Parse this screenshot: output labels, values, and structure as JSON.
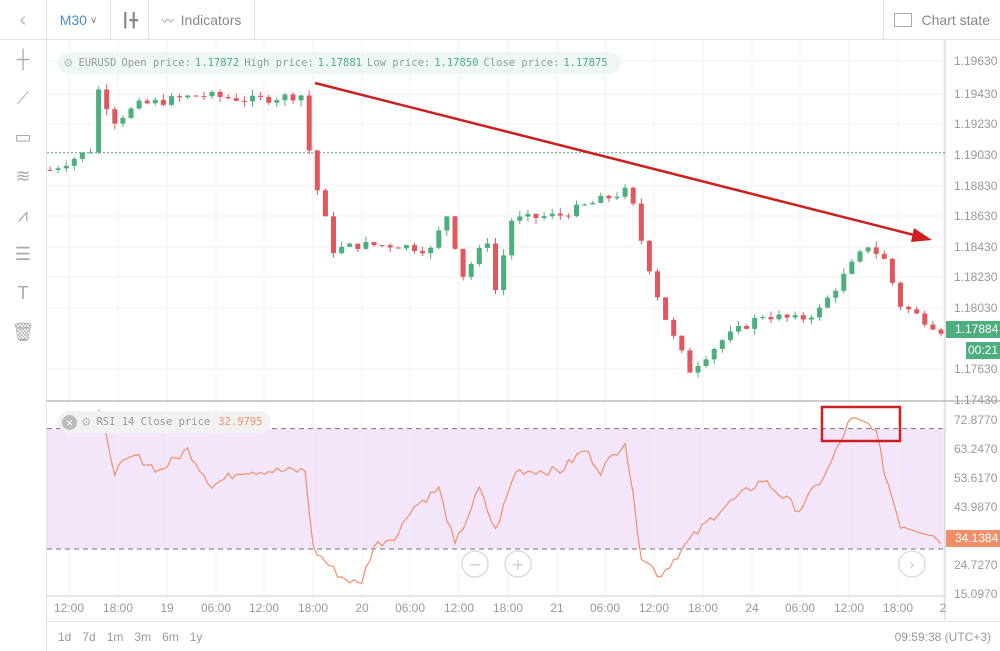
{
  "toolbar": {
    "timeframe": "M30",
    "indicators": "Indicators",
    "chart_state": "Chart state"
  },
  "legend": {
    "symbol": "EURUSD",
    "open_label": "Open price:",
    "open": "1.17872",
    "high_label": "High price:",
    "high": "1.17881",
    "low_label": "Low price:",
    "low": "1.17850",
    "close_label": "Close price:",
    "close": "1.17875"
  },
  "rsi_legend": {
    "label": "RSI 14 Close price",
    "value": "32.9795"
  },
  "price_axis": [
    "1.19630",
    "1.19430",
    "1.19230",
    "1.19030",
    "1.18830",
    "1.18630",
    "1.18430",
    "1.18230",
    "1.18030",
    "1.17630",
    "1.17430"
  ],
  "current_price": "1.17884",
  "countdown": "00:21",
  "rsi_axis": [
    "72.8770",
    "63.2470",
    "53.6170",
    "43.9870",
    "24.7270",
    "15.0970"
  ],
  "rsi_current": "34.1384",
  "time_axis": [
    "12:00",
    "18:00",
    "19",
    "06:00",
    "12:00",
    "18:00",
    "20",
    "06:00",
    "12:00",
    "18:00",
    "21",
    "06:00",
    "12:00",
    "18:00",
    "24",
    "06:00",
    "12:00",
    "18:00",
    "2"
  ],
  "ranges": [
    "1d",
    "7d",
    "1m",
    "3m",
    "6m",
    "1y"
  ],
  "clock": "09:59:38 (UTC+3)",
  "colors": {
    "up": "#4caf7d",
    "down": "#e0585d",
    "rsi": "#f0906a",
    "rsi_band": "#f3e6fb",
    "annotation": "#cc1f1f"
  },
  "chart_data": [
    {
      "type": "candlestick",
      "series_name": "EURUSD",
      "x_unit": "bar (M30)",
      "ylim": [
        1.1743,
        1.1973
      ],
      "last_line": 1.1903,
      "close_points": [
        [
          0,
          1.18918
        ],
        [
          5,
          1.19048
        ],
        [
          6,
          1.1944
        ],
        [
          8,
          1.19244
        ],
        [
          11,
          1.19342
        ],
        [
          18.5,
          1.19408
        ],
        [
          25,
          1.19375
        ],
        [
          31,
          1.19408
        ],
        [
          32,
          1.19048
        ],
        [
          33,
          1.18787
        ],
        [
          35,
          1.18395
        ],
        [
          38,
          1.18427
        ],
        [
          43,
          1.18427
        ],
        [
          47,
          1.18395
        ],
        [
          49,
          1.18623
        ],
        [
          51,
          1.18231
        ],
        [
          54,
          1.1846
        ],
        [
          55,
          1.18133
        ],
        [
          57,
          1.18591
        ],
        [
          63,
          1.18623
        ],
        [
          68,
          1.18721
        ],
        [
          71.5,
          1.18787
        ],
        [
          73,
          1.1846
        ],
        [
          75,
          1.181
        ],
        [
          76.5,
          1.17872
        ],
        [
          79,
          1.1761
        ],
        [
          83,
          1.17806
        ],
        [
          88,
          1.1797
        ],
        [
          92.5,
          1.17937
        ],
        [
          95,
          1.18003
        ],
        [
          99,
          1.18297
        ],
        [
          101,
          1.18427
        ],
        [
          103,
          1.1833
        ],
        [
          105,
          1.18035
        ],
        [
          110,
          1.17872
        ]
      ]
    },
    {
      "type": "line",
      "series_name": "RSI 14",
      "ylim": [
        15.097,
        72.877
      ],
      "levels": [
        70,
        30
      ],
      "points": [
        [
          6,
          76
        ],
        [
          8,
          56
        ],
        [
          10.5,
          61
        ],
        [
          13.5,
          56
        ],
        [
          17,
          63
        ],
        [
          20,
          51
        ],
        [
          23.5,
          56
        ],
        [
          28.5,
          56
        ],
        [
          31.5,
          56
        ],
        [
          32.5,
          30
        ],
        [
          35.8,
          21
        ],
        [
          38.3,
          18
        ],
        [
          40,
          31
        ],
        [
          43,
          35
        ],
        [
          44.4,
          43
        ],
        [
          48,
          50
        ],
        [
          50,
          31
        ],
        [
          53,
          50
        ],
        [
          55,
          36
        ],
        [
          57.5,
          56
        ],
        [
          63,
          56
        ],
        [
          66,
          63
        ],
        [
          68,
          56
        ],
        [
          71,
          66
        ],
        [
          73,
          28
        ],
        [
          75.3,
          21
        ],
        [
          79,
          33
        ],
        [
          82.7,
          43
        ],
        [
          88,
          53
        ],
        [
          92.5,
          43
        ],
        [
          96,
          56
        ],
        [
          98.8,
          73
        ],
        [
          101.8,
          71
        ],
        [
          103,
          56
        ],
        [
          105,
          38
        ],
        [
          108,
          36
        ],
        [
          110,
          33
        ]
      ]
    }
  ]
}
